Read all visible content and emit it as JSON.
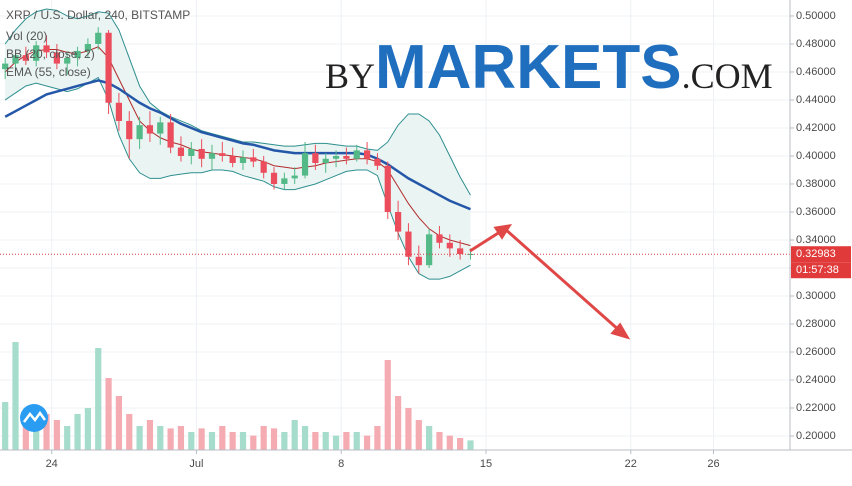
{
  "chart_data": {
    "type": "candlestick",
    "title": "XRP / U.S. Dollar, 240, BITSTAMP",
    "up_color": "#53b987",
    "down_color": "#eb4d5c",
    "grid": true,
    "x": [
      21.75,
      22.25,
      22.75,
      23.25,
      23.75,
      24.25,
      24.75,
      25.25,
      25.75,
      26.25,
      26.75,
      27.25,
      27.75,
      28.25,
      28.75,
      29.25,
      29.75,
      30.25,
      30.75,
      31.25,
      31.75,
      32.25,
      32.75,
      33.25,
      33.75,
      34.25,
      34.75,
      35.25,
      35.75,
      36.25,
      36.75,
      37.25,
      37.75,
      38.25,
      38.75,
      39.25,
      39.75,
      40.25,
      40.75,
      41.25,
      41.75,
      42.25,
      42.75,
      43.25,
      43.75,
      44.25
    ],
    "open": [
      0.462,
      0.466,
      0.472,
      0.468,
      0.479,
      0.474,
      0.466,
      0.47,
      0.475,
      0.48,
      0.488,
      0.438,
      0.425,
      0.412,
      0.422,
      0.416,
      0.424,
      0.406,
      0.4,
      0.405,
      0.398,
      0.402,
      0.4,
      0.395,
      0.399,
      0.396,
      0.388,
      0.38,
      0.384,
      0.386,
      0.402,
      0.395,
      0.398,
      0.4,
      0.398,
      0.404,
      0.398,
      0.393,
      0.36,
      0.346,
      0.328,
      0.322,
      0.344,
      0.338,
      0.334,
      0.33
    ],
    "high": [
      0.47,
      0.476,
      0.478,
      0.482,
      0.486,
      0.48,
      0.474,
      0.478,
      0.484,
      0.492,
      0.49,
      0.445,
      0.432,
      0.428,
      0.432,
      0.428,
      0.43,
      0.414,
      0.41,
      0.412,
      0.408,
      0.41,
      0.406,
      0.404,
      0.405,
      0.4,
      0.392,
      0.388,
      0.392,
      0.41,
      0.408,
      0.402,
      0.404,
      0.406,
      0.408,
      0.41,
      0.402,
      0.396,
      0.368,
      0.352,
      0.336,
      0.348,
      0.35,
      0.344,
      0.34,
      0.334
    ],
    "low": [
      0.455,
      0.46,
      0.465,
      0.464,
      0.47,
      0.462,
      0.458,
      0.464,
      0.47,
      0.476,
      0.43,
      0.418,
      0.398,
      0.405,
      0.41,
      0.408,
      0.402,
      0.396,
      0.394,
      0.392,
      0.39,
      0.396,
      0.392,
      0.39,
      0.392,
      0.384,
      0.376,
      0.376,
      0.38,
      0.384,
      0.39,
      0.388,
      0.392,
      0.394,
      0.396,
      0.394,
      0.39,
      0.355,
      0.34,
      0.322,
      0.316,
      0.32,
      0.334,
      0.328,
      0.326,
      0.326
    ],
    "close": [
      0.466,
      0.472,
      0.468,
      0.479,
      0.474,
      0.466,
      0.47,
      0.475,
      0.48,
      0.488,
      0.438,
      0.425,
      0.412,
      0.422,
      0.416,
      0.424,
      0.406,
      0.4,
      0.405,
      0.398,
      0.402,
      0.4,
      0.395,
      0.399,
      0.396,
      0.388,
      0.38,
      0.384,
      0.386,
      0.402,
      0.395,
      0.398,
      0.4,
      0.398,
      0.404,
      0.398,
      0.393,
      0.36,
      0.346,
      0.328,
      0.322,
      0.344,
      0.338,
      0.334,
      0.33,
      0.33
    ],
    "volume": {
      "name": "Vol (20)",
      "up_color": "#a6dccb",
      "down_color": "#f5abb2",
      "lim": [
        0,
        100
      ],
      "values": [
        40,
        90,
        25,
        20,
        30,
        25,
        20,
        30,
        35,
        85,
        60,
        45,
        30,
        20,
        25,
        20,
        18,
        20,
        15,
        18,
        15,
        20,
        15,
        15,
        12,
        20,
        18,
        15,
        25,
        20,
        15,
        15,
        12,
        15,
        15,
        12,
        20,
        75,
        45,
        35,
        25,
        20,
        15,
        12,
        10,
        8
      ]
    },
    "bollinger": {
      "name": "BB (20, close, 2)",
      "color": "#2f8f8f",
      "basis_color": "#b22a2a",
      "fill": "#e9f4f3",
      "upper": [
        0.48,
        0.49,
        0.498,
        0.503,
        0.505,
        0.504,
        0.5,
        0.498,
        0.5,
        0.503,
        0.502,
        0.49,
        0.47,
        0.45,
        0.438,
        0.432,
        0.428,
        0.425,
        0.422,
        0.418,
        0.416,
        0.414,
        0.412,
        0.41,
        0.41,
        0.409,
        0.408,
        0.407,
        0.407,
        0.408,
        0.409,
        0.409,
        0.408,
        0.407,
        0.407,
        0.405,
        0.404,
        0.41,
        0.422,
        0.43,
        0.43,
        0.425,
        0.415,
        0.4,
        0.385,
        0.372
      ],
      "basis": [
        0.46,
        0.467,
        0.472,
        0.475,
        0.476,
        0.476,
        0.474,
        0.473,
        0.475,
        0.478,
        0.47,
        0.455,
        0.44,
        0.425,
        0.418,
        0.413,
        0.41,
        0.408,
        0.405,
        0.403,
        0.402,
        0.401,
        0.4,
        0.399,
        0.398,
        0.396,
        0.393,
        0.392,
        0.391,
        0.392,
        0.393,
        0.395,
        0.396,
        0.397,
        0.398,
        0.398,
        0.396,
        0.39,
        0.378,
        0.366,
        0.356,
        0.348,
        0.343,
        0.34,
        0.338,
        0.336
      ],
      "lower": [
        0.44,
        0.445,
        0.45,
        0.452,
        0.45,
        0.448,
        0.446,
        0.448,
        0.452,
        0.456,
        0.44,
        0.415,
        0.398,
        0.388,
        0.384,
        0.384,
        0.386,
        0.387,
        0.388,
        0.388,
        0.39,
        0.39,
        0.389,
        0.386,
        0.384,
        0.382,
        0.378,
        0.376,
        0.376,
        0.378,
        0.38,
        0.383,
        0.386,
        0.389,
        0.39,
        0.39,
        0.386,
        0.365,
        0.345,
        0.328,
        0.316,
        0.312,
        0.312,
        0.314,
        0.318,
        0.322
      ]
    },
    "ema": {
      "name": "EMA (55, close)",
      "color": "#2457a8",
      "values": [
        0.428,
        0.432,
        0.436,
        0.44,
        0.444,
        0.446,
        0.448,
        0.45,
        0.452,
        0.454,
        0.452,
        0.448,
        0.443,
        0.438,
        0.434,
        0.431,
        0.427,
        0.423,
        0.42,
        0.417,
        0.415,
        0.413,
        0.411,
        0.409,
        0.408,
        0.406,
        0.404,
        0.403,
        0.402,
        0.402,
        0.402,
        0.402,
        0.402,
        0.402,
        0.402,
        0.401,
        0.398,
        0.394,
        0.389,
        0.384,
        0.38,
        0.376,
        0.372,
        0.368,
        0.365,
        0.362
      ]
    },
    "last_price": {
      "value": 0.32983,
      "label": "0.32983",
      "color": "#e03a3a"
    },
    "countdown": "01:57:38",
    "xlim": [
      21.5,
      59.7
    ],
    "ylim": [
      0.19,
      0.5114
    ],
    "xticks": [
      24,
      {
        "value": 31,
        "label": "Jul"
      },
      {
        "value": 38,
        "label": "8"
      },
      {
        "value": 45,
        "label": "15"
      },
      {
        "value": 52,
        "label": "22"
      },
      {
        "value": 56,
        "label": "26"
      }
    ],
    "yticks": [
      {
        "value": 0.2,
        "label": "0.20000"
      },
      {
        "value": 0.22,
        "label": "0.22000"
      },
      {
        "value": 0.24,
        "label": "0.24000"
      },
      {
        "value": 0.26,
        "label": "0.26000"
      },
      {
        "value": 0.28,
        "label": "0.28000"
      },
      {
        "value": 0.3,
        "label": "0.30000"
      },
      {
        "value": 0.32,
        "label": "0.32000"
      },
      {
        "value": 0.34,
        "label": "0.34000"
      },
      {
        "value": 0.36,
        "label": "0.36000"
      },
      {
        "value": 0.38,
        "label": "0.38000"
      },
      {
        "value": 0.4,
        "label": "0.40000"
      },
      {
        "value": 0.42,
        "label": "0.42000"
      },
      {
        "value": 0.44,
        "label": "0.44000"
      },
      {
        "value": 0.46,
        "label": "0.46000"
      },
      {
        "value": 0.48,
        "label": "0.48000"
      },
      {
        "value": 0.5,
        "label": "0.50000"
      }
    ],
    "watermark": {
      "prefix": "BY",
      "main": "MARKETS",
      "suffix": ".COM"
    }
  }
}
